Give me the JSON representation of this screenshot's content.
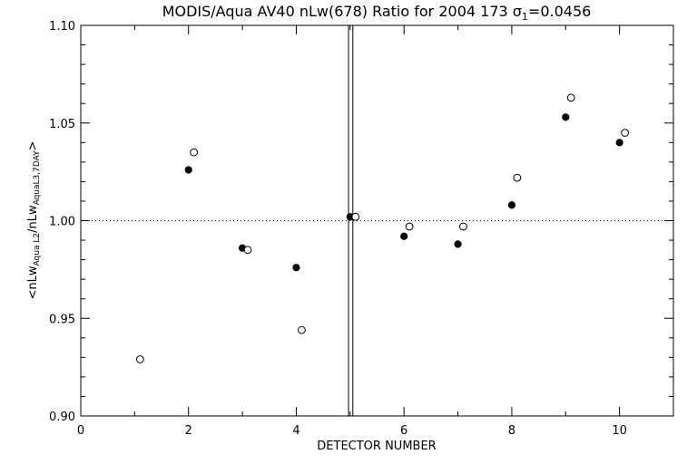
{
  "chart_data": {
    "type": "scatter",
    "title_main": "MODIS/Aqua AV40 nLw(678) Ratio for 2004 173 ",
    "title_sigma": "σ",
    "title_sigma_sub": "1",
    "title_tail": "=0.0456",
    "xlabel": "DETECTOR NUMBER",
    "ylabel": {
      "open": "<nLw",
      "sub1": "Aqua L2",
      "mid": "/nLw",
      "sub2": "AquaL3,7DAY",
      "close": ">"
    },
    "xlim": [
      0,
      11
    ],
    "ylim": [
      0.9,
      1.1
    ],
    "x_ticks": [
      0,
      2,
      4,
      6,
      8,
      10
    ],
    "x_tick_labels": [
      "0",
      "2",
      "4",
      "6",
      "8",
      "10"
    ],
    "y_ticks": [
      0.9,
      0.95,
      1.0,
      1.05,
      1.1
    ],
    "y_tick_labels": [
      "0.90",
      "0.95",
      "1.00",
      "1.05",
      "1.10"
    ],
    "reference_line_y": 1.0,
    "vertical_lines_x": [
      4.97,
      5.05
    ],
    "series": [
      {
        "marker": "filled-circle",
        "x": [
          2,
          3,
          4,
          5,
          6,
          7,
          8,
          9,
          10
        ],
        "y": [
          1.026,
          0.986,
          0.976,
          1.002,
          0.992,
          0.988,
          1.008,
          1.053,
          1.04
        ]
      },
      {
        "marker": "open-circle",
        "x": [
          1.1,
          2.1,
          3.1,
          4.1,
          5.1,
          6.1,
          7.1,
          8.1,
          9.1,
          10.1
        ],
        "y": [
          0.929,
          1.035,
          0.985,
          0.944,
          1.002,
          0.997,
          0.997,
          1.022,
          1.063,
          1.045
        ]
      }
    ],
    "colors": {
      "foreground": "#000000",
      "background": "#ffffff"
    }
  }
}
